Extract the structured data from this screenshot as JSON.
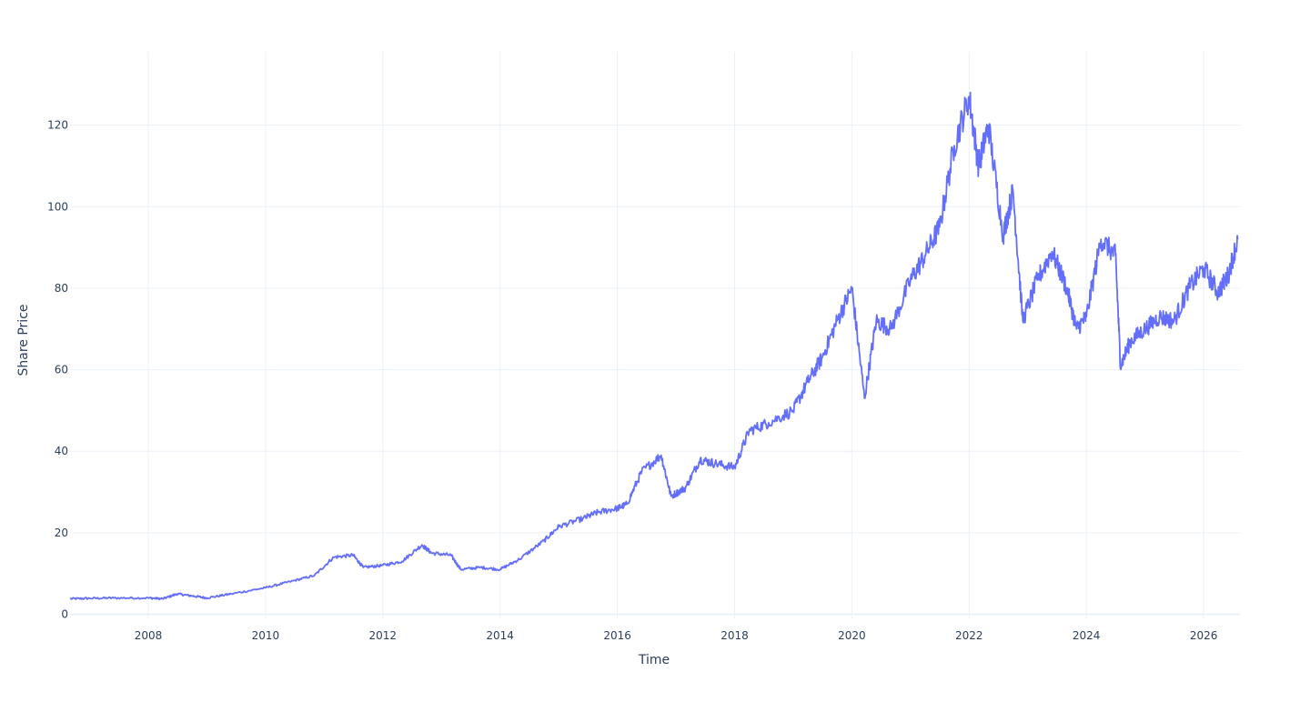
{
  "chart_data": {
    "type": "line",
    "title": "",
    "xlabel": "Time",
    "ylabel": "Share Price",
    "xlim": [
      "2006-09-01",
      "2026-08-15"
    ],
    "ylim": [
      -1,
      138
    ],
    "x_ticks": [
      "2008",
      "2010",
      "2012",
      "2014",
      "2016",
      "2018",
      "2020",
      "2022",
      "2024",
      "2026"
    ],
    "y_ticks": [
      "0",
      "20",
      "40",
      "60",
      "80",
      "100",
      "120"
    ],
    "grid": true,
    "legend": "none",
    "line_color": "#636efa",
    "grid_color": "#ebf0f8",
    "text_color": "#2a3f5f",
    "series": [
      {
        "x": [
          "2006-09-01",
          "2007-01-01",
          "2007-06-01",
          "2008-01-01",
          "2008-04-01",
          "2008-07-01",
          "2008-10-01",
          "2009-01-01",
          "2009-06-01",
          "2010-01-01",
          "2010-06-01",
          "2010-11-01",
          "2011-03-01",
          "2011-07-01",
          "2011-09-01",
          "2012-01-01",
          "2012-05-01",
          "2012-09-01",
          "2012-11-01",
          "2013-03-01",
          "2013-05-01",
          "2013-09-01",
          "2014-01-01",
          "2014-05-01",
          "2014-10-01",
          "2015-01-01",
          "2015-06-01",
          "2015-09-01",
          "2016-01-01",
          "2016-03-01",
          "2016-06-01",
          "2016-10-01",
          "2016-12-01",
          "2017-03-01",
          "2017-06-01",
          "2017-09-01",
          "2018-01-01",
          "2018-04-01",
          "2018-08-01",
          "2019-01-01",
          "2019-04-01",
          "2019-07-01",
          "2019-10-01",
          "2020-01-01",
          "2020-03-20",
          "2020-06-01",
          "2020-09-01",
          "2021-01-01",
          "2021-04-01",
          "2021-07-01",
          "2021-10-01",
          "2022-01-01",
          "2022-03-01",
          "2022-05-01",
          "2022-08-01",
          "2022-10-01",
          "2022-12-01",
          "2023-03-01",
          "2023-06-01",
          "2023-09-01",
          "2023-11-01",
          "2024-01-01",
          "2024-04-01",
          "2024-07-01",
          "2024-08-01",
          "2024-10-01",
          "2025-01-01",
          "2025-04-01",
          "2025-07-01",
          "2025-10-01",
          "2026-01-01",
          "2026-04-01",
          "2026-06-01",
          "2026-08-01"
        ],
        "y": [
          3.8,
          3.9,
          4.0,
          4.0,
          3.8,
          5.0,
          4.5,
          4.0,
          5.0,
          6.5,
          8.0,
          9.5,
          14.0,
          14.5,
          11.5,
          12.0,
          13.0,
          17.0,
          15.0,
          14.5,
          11.0,
          11.5,
          11.0,
          13.5,
          18.0,
          21.5,
          23.5,
          25.0,
          26.0,
          27.0,
          35.0,
          39.0,
          29.0,
          31.0,
          38.0,
          37.0,
          36.0,
          45.0,
          47.0,
          50.0,
          57.0,
          63.0,
          72.0,
          80.0,
          53.0,
          72.0,
          70.0,
          82.0,
          88.0,
          95.0,
          115.0,
          127.0,
          110.0,
          120.0,
          93.0,
          104.0,
          72.0,
          82.0,
          89.0,
          80.0,
          70.0,
          73.0,
          92.0,
          88.0,
          61.0,
          67.0,
          70.0,
          73.0,
          72.0,
          80.0,
          85.0,
          79.0,
          83.0,
          92.0
        ]
      }
    ]
  }
}
